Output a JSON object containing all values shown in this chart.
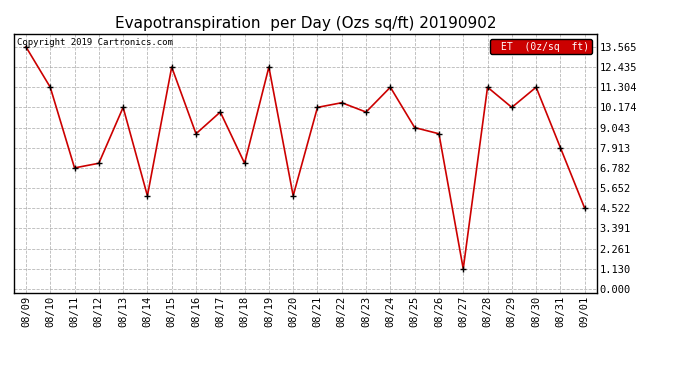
{
  "title": "Evapotranspiration  per Day (Ozs sq/ft) 20190902",
  "copyright": "Copyright 2019 Cartronics.com",
  "legend_label": "ET  (0z/sq  ft)",
  "dates": [
    "08/09",
    "08/10",
    "08/11",
    "08/12",
    "08/13",
    "08/14",
    "08/15",
    "08/16",
    "08/17",
    "08/18",
    "08/19",
    "08/20",
    "08/21",
    "08/22",
    "08/23",
    "08/24",
    "08/25",
    "08/26",
    "08/27",
    "08/28",
    "08/29",
    "08/30",
    "08/31",
    "09/01"
  ],
  "values": [
    13.565,
    11.304,
    6.782,
    7.043,
    10.174,
    5.217,
    12.435,
    8.695,
    9.913,
    7.043,
    12.435,
    5.217,
    10.174,
    10.435,
    9.913,
    11.304,
    9.043,
    8.695,
    1.13,
    11.304,
    10.174,
    11.304,
    7.913,
    4.522
  ],
  "line_color": "#cc0000",
  "marker_color": "#000000",
  "bg_color": "#ffffff",
  "grid_color": "#999999",
  "yticks": [
    0.0,
    1.13,
    2.261,
    3.391,
    4.522,
    5.652,
    6.782,
    7.913,
    9.043,
    10.174,
    11.304,
    12.435,
    13.565
  ],
  "ylim": [
    -0.2,
    14.3
  ],
  "legend_bg": "#cc0000",
  "legend_text": "#ffffff",
  "title_fontsize": 11,
  "tick_fontsize": 7.5,
  "copyright_fontsize": 6.5
}
